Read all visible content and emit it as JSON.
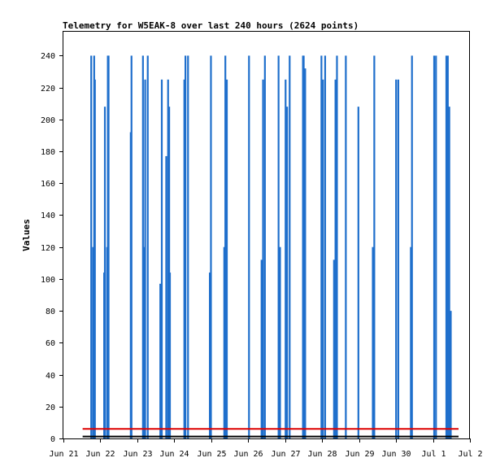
{
  "chart_data": {
    "type": "line",
    "title": "Telemetry for W5EAK-8 over last 240 hours (2624 points)",
    "xlabel": "",
    "ylabel": "Values",
    "ylim": [
      0,
      255
    ],
    "xlim": [
      0,
      11
    ],
    "x_ticks": [
      "Jun 21",
      "Jun 22",
      "Jun 23",
      "Jun 24",
      "Jun 25",
      "Jun 26",
      "Jun 27",
      "Jun 28",
      "Jun 29",
      "Jun 30",
      "Jul 1",
      "Jul 2"
    ],
    "y_ticks": [
      0,
      20,
      40,
      60,
      80,
      100,
      120,
      140,
      160,
      180,
      200,
      220,
      240
    ],
    "grid": false,
    "colors": {
      "spikes": "#1f6fcc",
      "threshold": "#dd0000",
      "baseline": "#000000",
      "frame": "#000000"
    },
    "series": [
      {
        "values": [
          {
            "x": 0.75,
            "y": 240
          },
          {
            "x": 0.8,
            "y": 120
          },
          {
            "x": 0.83,
            "y": 240
          },
          {
            "x": 0.85,
            "y": 225
          },
          {
            "x": 1.1,
            "y": 104
          },
          {
            "x": 1.12,
            "y": 208
          },
          {
            "x": 1.18,
            "y": 120
          },
          {
            "x": 1.2,
            "y": 240
          },
          {
            "x": 1.22,
            "y": 240
          },
          {
            "x": 1.82,
            "y": 192
          },
          {
            "x": 1.84,
            "y": 240
          },
          {
            "x": 2.15,
            "y": 240
          },
          {
            "x": 2.17,
            "y": 120
          },
          {
            "x": 2.21,
            "y": 225
          },
          {
            "x": 2.28,
            "y": 240
          },
          {
            "x": 2.62,
            "y": 97
          },
          {
            "x": 2.66,
            "y": 225
          },
          {
            "x": 2.78,
            "y": 177
          },
          {
            "x": 2.83,
            "y": 225
          },
          {
            "x": 2.86,
            "y": 208
          },
          {
            "x": 2.88,
            "y": 104
          },
          {
            "x": 3.27,
            "y": 225
          },
          {
            "x": 3.3,
            "y": 240
          },
          {
            "x": 3.37,
            "y": 240
          },
          {
            "x": 3.96,
            "y": 104
          },
          {
            "x": 3.99,
            "y": 240
          },
          {
            "x": 4.35,
            "y": 120
          },
          {
            "x": 4.38,
            "y": 240
          },
          {
            "x": 4.42,
            "y": 225
          },
          {
            "x": 5.02,
            "y": 240
          },
          {
            "x": 5.36,
            "y": 112
          },
          {
            "x": 5.4,
            "y": 225
          },
          {
            "x": 5.45,
            "y": 240
          },
          {
            "x": 5.82,
            "y": 240
          },
          {
            "x": 5.86,
            "y": 120
          },
          {
            "x": 6.01,
            "y": 225
          },
          {
            "x": 6.05,
            "y": 208
          },
          {
            "x": 6.12,
            "y": 240
          },
          {
            "x": 6.48,
            "y": 240
          },
          {
            "x": 6.5,
            "y": 240
          },
          {
            "x": 6.54,
            "y": 232
          },
          {
            "x": 6.98,
            "y": 240
          },
          {
            "x": 7.02,
            "y": 225
          },
          {
            "x": 7.08,
            "y": 240
          },
          {
            "x": 7.32,
            "y": 112
          },
          {
            "x": 7.36,
            "y": 225
          },
          {
            "x": 7.4,
            "y": 240
          },
          {
            "x": 7.64,
            "y": 240
          },
          {
            "x": 7.98,
            "y": 208
          },
          {
            "x": 8.37,
            "y": 120
          },
          {
            "x": 8.41,
            "y": 240
          },
          {
            "x": 9.0,
            "y": 225
          },
          {
            "x": 9.06,
            "y": 225
          },
          {
            "x": 9.4,
            "y": 120
          },
          {
            "x": 9.43,
            "y": 240
          },
          {
            "x": 10.03,
            "y": 240
          },
          {
            "x": 10.08,
            "y": 240
          },
          {
            "x": 10.36,
            "y": 240
          },
          {
            "x": 10.4,
            "y": 240
          },
          {
            "x": 10.44,
            "y": 208
          },
          {
            "x": 10.48,
            "y": 80
          }
        ]
      },
      {
        "values": [
          {
            "x": 0.52,
            "y": 6
          },
          {
            "x": 11,
            "y": 6
          }
        ]
      },
      {
        "values": [
          {
            "x": 0.52,
            "y": 0.7
          },
          {
            "x": 11,
            "y": 0.7
          }
        ]
      }
    ]
  }
}
